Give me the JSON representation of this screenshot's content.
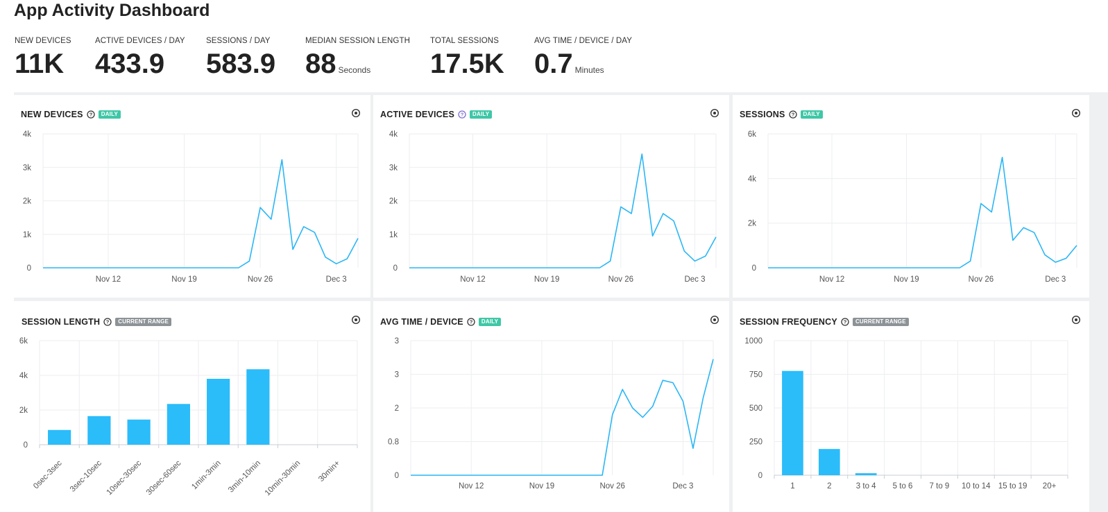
{
  "header": {
    "title": "App Activity Dashboard"
  },
  "kpis": [
    {
      "label": "NEW DEVICES",
      "value": "11K",
      "unit": ""
    },
    {
      "label": "ACTIVE DEVICES / DAY",
      "value": "433.9",
      "unit": ""
    },
    {
      "label": "SESSIONS / DAY",
      "value": "583.9",
      "unit": ""
    },
    {
      "label": "MEDIAN SESSION LENGTH",
      "value": "88",
      "unit": "Seconds"
    },
    {
      "label": "TOTAL SESSIONS",
      "value": "17.5K",
      "unit": ""
    },
    {
      "label": "AVG TIME / DEVICE / DAY",
      "value": "0.7",
      "unit": "Minutes"
    }
  ],
  "icons": {
    "help": "help-circle-icon",
    "settings": "gear-icon"
  },
  "colors": {
    "series": "#29b6f6",
    "bar": "#2bbcfa",
    "badge_daily": "#3fc7a6",
    "badge_range": "#8c9296",
    "grid": "#eceef0"
  },
  "cards": [
    {
      "title": "NEW DEVICES",
      "badge": "DAILY",
      "badge_kind": "daily"
    },
    {
      "title": "ACTIVE DEVICES",
      "badge": "DAILY",
      "badge_kind": "daily"
    },
    {
      "title": "SESSIONS",
      "badge": "DAILY",
      "badge_kind": "daily"
    },
    {
      "title": "SESSION LENGTH",
      "badge": "CURRENT RANGE",
      "badge_kind": "range"
    },
    {
      "title": "AVG TIME / DEVICE",
      "badge": "DAILY",
      "badge_kind": "daily"
    },
    {
      "title": "SESSION FREQUENCY",
      "badge": "CURRENT RANGE",
      "badge_kind": "range"
    }
  ],
  "chart_data": [
    {
      "type": "line",
      "title": "NEW DEVICES",
      "x_ticks": [
        "Nov 12",
        "Nov 19",
        "Nov 26",
        "Dec 3"
      ],
      "x_tick_index": [
        6,
        13,
        20,
        27
      ],
      "y_ticks": [
        "0",
        "1k",
        "2k",
        "3k",
        "4k"
      ],
      "ylim": [
        0,
        4000
      ],
      "grid": true,
      "series": [
        {
          "values": [
            0,
            0,
            0,
            0,
            0,
            0,
            0,
            0,
            0,
            0,
            0,
            0,
            0,
            0,
            0,
            0,
            0,
            0,
            0,
            200,
            1800,
            1450,
            3230,
            550,
            1230,
            1060,
            320,
            120,
            270,
            880
          ]
        }
      ]
    },
    {
      "type": "line",
      "title": "ACTIVE DEVICES",
      "x_ticks": [
        "Nov 12",
        "Nov 19",
        "Nov 26",
        "Dec 3"
      ],
      "x_tick_index": [
        6,
        13,
        20,
        27
      ],
      "y_ticks": [
        "0",
        "1k",
        "2k",
        "3k",
        "4k"
      ],
      "ylim": [
        0,
        4000
      ],
      "grid": true,
      "series": [
        {
          "values": [
            0,
            0,
            0,
            0,
            0,
            0,
            0,
            0,
            0,
            0,
            0,
            0,
            0,
            0,
            0,
            0,
            0,
            0,
            0,
            200,
            1820,
            1620,
            3400,
            950,
            1620,
            1400,
            500,
            200,
            350,
            920
          ]
        }
      ]
    },
    {
      "type": "line",
      "title": "SESSIONS",
      "x_ticks": [
        "Nov 12",
        "Nov 19",
        "Nov 26",
        "Dec 3"
      ],
      "x_tick_index": [
        6,
        13,
        20,
        27
      ],
      "y_ticks": [
        "0",
        "2k",
        "4k",
        "6k"
      ],
      "ylim": [
        0,
        6000
      ],
      "grid": true,
      "series": [
        {
          "values": [
            0,
            0,
            0,
            0,
            0,
            0,
            0,
            0,
            0,
            0,
            0,
            0,
            0,
            0,
            0,
            0,
            0,
            0,
            0,
            300,
            2880,
            2500,
            4950,
            1230,
            1800,
            1580,
            580,
            250,
            430,
            1000
          ]
        }
      ]
    },
    {
      "type": "bar",
      "title": "SESSION LENGTH",
      "categories": [
        "0sec-3sec",
        "3sec-10sec",
        "10sec-30sec",
        "30sec-60sec",
        "1min-3min",
        "3min-10min",
        "10min-30min",
        "30min+"
      ],
      "values": [
        850,
        1650,
        1450,
        2350,
        3800,
        4350,
        0,
        0
      ],
      "y_ticks": [
        "0",
        "2k",
        "4k",
        "6k"
      ],
      "ylim": [
        0,
        6000
      ],
      "grid": true
    },
    {
      "type": "line",
      "title": "AVG TIME / DEVICE",
      "x_ticks": [
        "Nov 12",
        "Nov 19",
        "Nov 26",
        "Dec 3"
      ],
      "x_tick_index": [
        6,
        13,
        20,
        27
      ],
      "y_ticks": [
        "0",
        "0.8",
        "2",
        "3",
        "3"
      ],
      "ylim": [
        0,
        4
      ],
      "grid": true,
      "series": [
        {
          "values": [
            0,
            0,
            0,
            0,
            0,
            0,
            0,
            0,
            0,
            0,
            0,
            0,
            0,
            0,
            0,
            0,
            0,
            0,
            0,
            0,
            1.8,
            2.55,
            2.0,
            1.72,
            2.05,
            2.82,
            2.75,
            2.2,
            0.8,
            2.3,
            3.45
          ]
        }
      ]
    },
    {
      "type": "bar",
      "title": "SESSION FREQUENCY",
      "categories": [
        "1",
        "2",
        "3 to 4",
        "5 to 6",
        "7 to 9",
        "10 to 14",
        "15 to 19",
        "20+"
      ],
      "values": [
        775,
        195,
        15,
        0,
        0,
        0,
        0,
        0
      ],
      "y_ticks": [
        "0",
        "250",
        "500",
        "750",
        "1000"
      ],
      "ylim": [
        0,
        1000
      ],
      "grid": true
    }
  ]
}
